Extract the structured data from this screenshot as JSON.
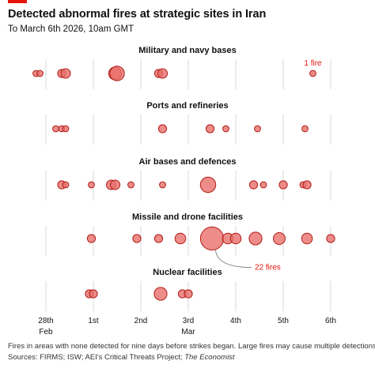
{
  "header": {
    "title": "Detected abnormal fires at strategic sites in Iran",
    "subtitle": "To March 6th 2026, 10am GMT"
  },
  "colors": {
    "accent": "#e3120b",
    "bubble_fill": "#e86f6b",
    "bubble_stroke": "#b01c16",
    "annotation": "#e3120b",
    "grid": "#d9d9d9"
  },
  "chart_data": {
    "type": "scatter",
    "encoding": "bubble size = number of detected fires",
    "x_range": [
      "Feb 27th 2026 12:00",
      "Mar 6th 2026 12:00"
    ],
    "x_ticks": [
      {
        "day": "28th",
        "month": "Feb",
        "date": "2026-02-28"
      },
      {
        "day": "1st",
        "month": "",
        "date": "2026-03-01"
      },
      {
        "day": "2nd",
        "month": "",
        "date": "2026-03-02"
      },
      {
        "day": "3rd",
        "month": "Mar",
        "date": "2026-03-03"
      },
      {
        "day": "4th",
        "month": "",
        "date": "2026-03-04"
      },
      {
        "day": "5th",
        "month": "",
        "date": "2026-03-05"
      },
      {
        "day": "6th",
        "month": "",
        "date": "2026-03-06"
      }
    ],
    "grid": true,
    "panels": [
      {
        "name": "Military and navy bases",
        "points": [
          {
            "date": "2026-02-27T19:00",
            "fires": 1
          },
          {
            "date": "2026-02-27T21:00",
            "fires": 1
          },
          {
            "date": "2026-02-28T08:00",
            "fires": 2
          },
          {
            "date": "2026-02-28T10:00",
            "fires": 3
          },
          {
            "date": "2026-03-01T11:00",
            "fires": 6
          },
          {
            "date": "2026-03-01T12:00",
            "fires": 8
          },
          {
            "date": "2026-03-02T09:00",
            "fires": 2
          },
          {
            "date": "2026-03-02T11:00",
            "fires": 3
          },
          {
            "date": "2026-03-05T15:00",
            "fires": 1
          }
        ]
      },
      {
        "name": "Ports and refineries",
        "points": [
          {
            "date": "2026-02-28T05:00",
            "fires": 1
          },
          {
            "date": "2026-02-28T08:00",
            "fires": 1
          },
          {
            "date": "2026-02-28T10:00",
            "fires": 1
          },
          {
            "date": "2026-03-02T11:00",
            "fires": 2
          },
          {
            "date": "2026-03-03T11:00",
            "fires": 2
          },
          {
            "date": "2026-03-03T19:00",
            "fires": 1
          },
          {
            "date": "2026-03-04T11:00",
            "fires": 1
          },
          {
            "date": "2026-03-05T11:00",
            "fires": 1
          }
        ]
      },
      {
        "name": "Air bases and defences",
        "points": [
          {
            "date": "2026-02-28T08:00",
            "fires": 2
          },
          {
            "date": "2026-02-28T10:00",
            "fires": 1
          },
          {
            "date": "2026-02-28T23:00",
            "fires": 1
          },
          {
            "date": "2026-03-01T09:00",
            "fires": 3
          },
          {
            "date": "2026-03-01T11:00",
            "fires": 3
          },
          {
            "date": "2026-03-01T19:00",
            "fires": 1
          },
          {
            "date": "2026-03-02T11:00",
            "fires": 1
          },
          {
            "date": "2026-03-03T10:00",
            "fires": 9
          },
          {
            "date": "2026-03-04T09:00",
            "fires": 2
          },
          {
            "date": "2026-03-04T14:00",
            "fires": 1
          },
          {
            "date": "2026-03-05T00:00",
            "fires": 2
          },
          {
            "date": "2026-03-05T10:00",
            "fires": 1
          },
          {
            "date": "2026-03-05T12:00",
            "fires": 2
          }
        ]
      },
      {
        "name": "Missile and drone facilities",
        "points": [
          {
            "date": "2026-02-28T23:00",
            "fires": 2
          },
          {
            "date": "2026-03-01T22:00",
            "fires": 2
          },
          {
            "date": "2026-03-02T09:00",
            "fires": 2
          },
          {
            "date": "2026-03-02T20:00",
            "fires": 4
          },
          {
            "date": "2026-03-03T12:00",
            "fires": 22
          },
          {
            "date": "2026-03-03T20:00",
            "fires": 4
          },
          {
            "date": "2026-03-04T00:00",
            "fires": 4
          },
          {
            "date": "2026-03-04T10:00",
            "fires": 6
          },
          {
            "date": "2026-03-04T22:00",
            "fires": 5
          },
          {
            "date": "2026-03-05T12:00",
            "fires": 4
          },
          {
            "date": "2026-03-06T00:00",
            "fires": 2
          }
        ]
      },
      {
        "name": "Nuclear facilities",
        "points": [
          {
            "date": "2026-02-28T22:00",
            "fires": 2
          },
          {
            "date": "2026-03-01T00:00",
            "fires": 2
          },
          {
            "date": "2026-03-02T10:00",
            "fires": 6
          },
          {
            "date": "2026-03-02T21:00",
            "fires": 2
          },
          {
            "date": "2026-03-03T00:00",
            "fires": 2
          }
        ]
      }
    ],
    "annotations": [
      {
        "panel": 0,
        "label": "1 fire",
        "date": "2026-03-05T15:00"
      },
      {
        "panel": 3,
        "label": "22 fires",
        "date": "2026-03-03T12:00"
      }
    ]
  },
  "footer": {
    "note": "Fires in areas with none detected for nine days before strikes began. Large fires may cause multiple detections.",
    "sources_prefix": "Sources: FIRMS; ISW; AEI's Critical Threats Project; ",
    "sources_publisher": "The Economist"
  }
}
